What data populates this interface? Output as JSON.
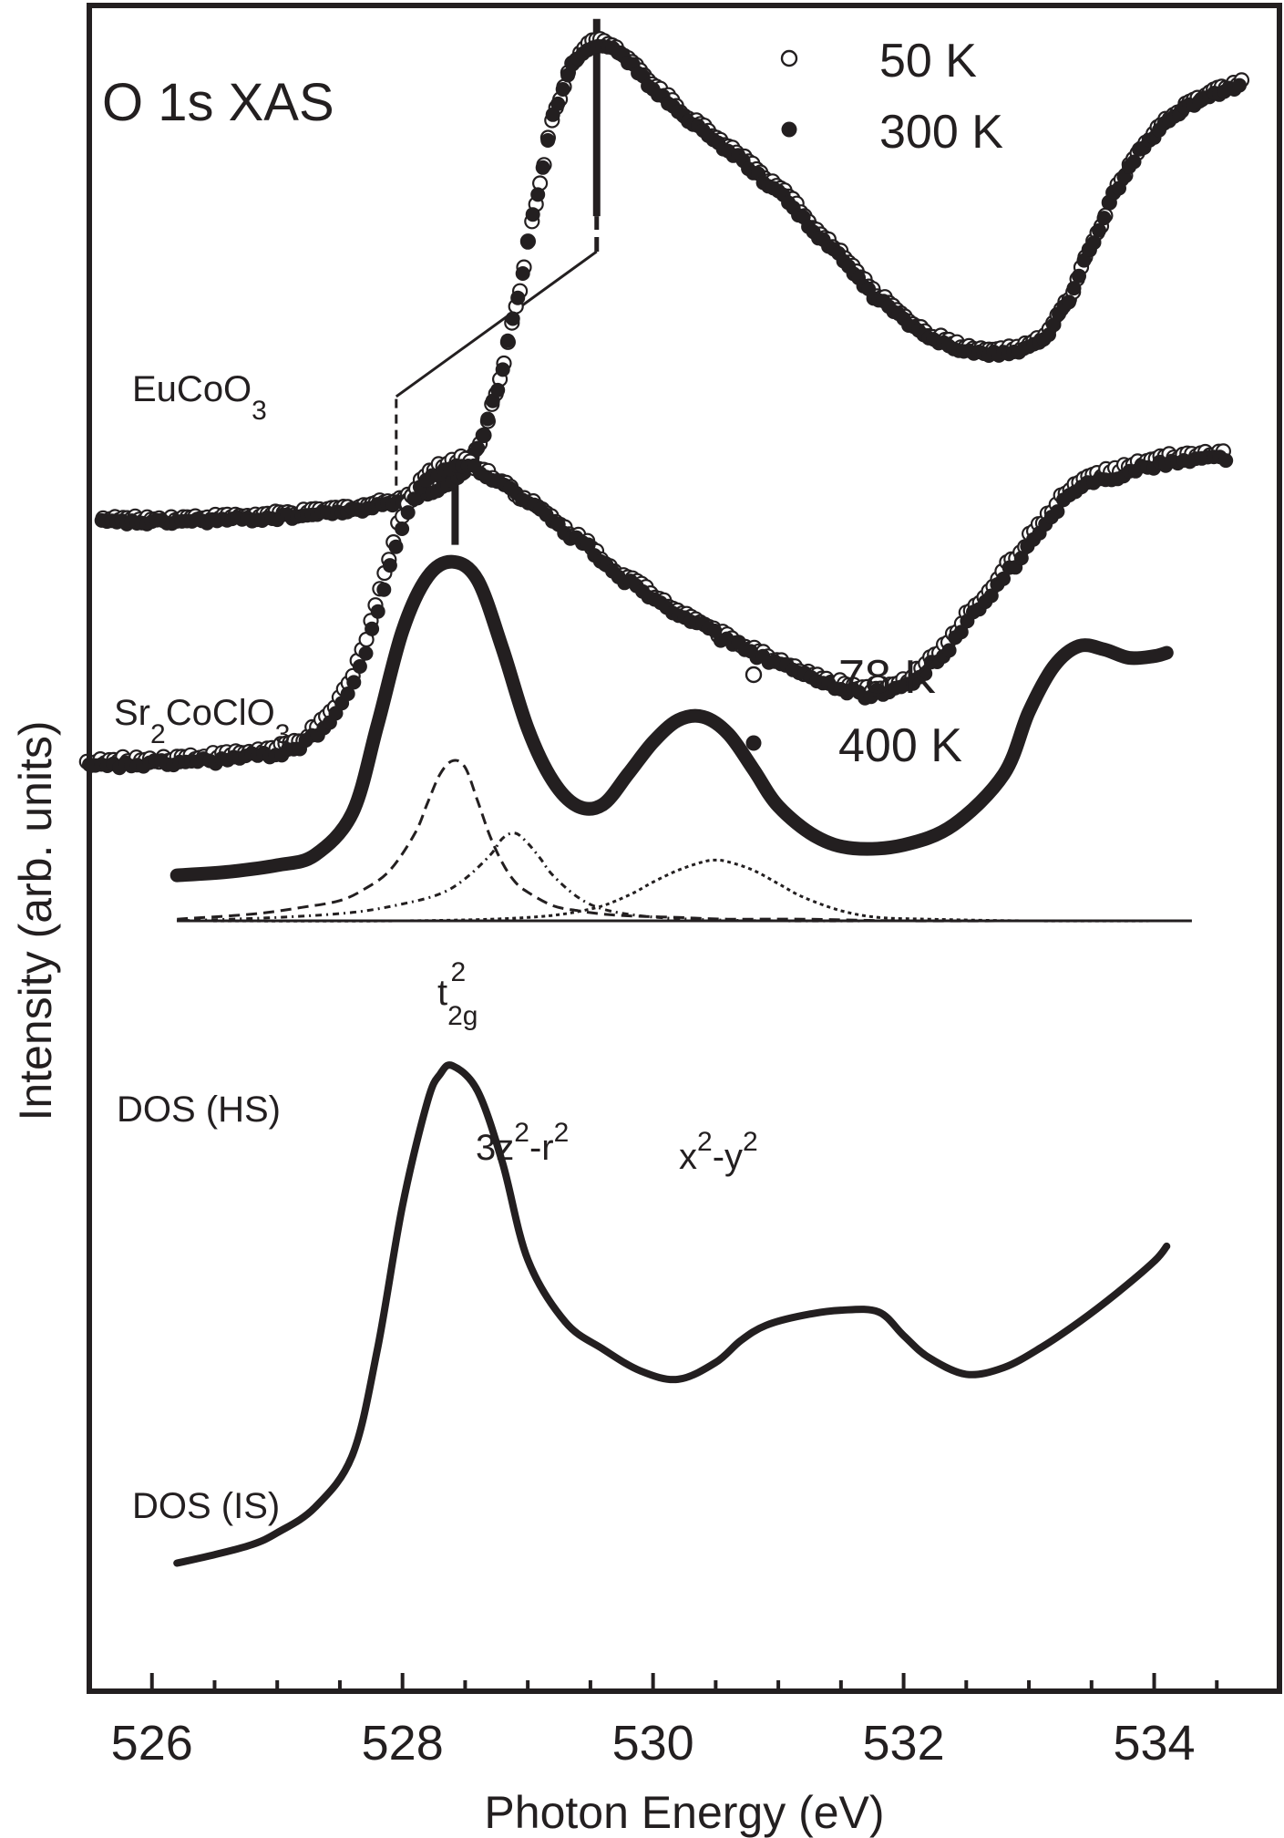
{
  "chart_data": {
    "type": "line",
    "title": "O 1s XAS",
    "xlabel": "Photon Energy (eV)",
    "ylabel": "Intensity (arb. units)",
    "xlim": [
      525.5,
      535.0
    ],
    "ylim": [
      0,
      1
    ],
    "x_ticks": [
      "526",
      "528",
      "530",
      "532",
      "534"
    ],
    "x_tick_values": [
      526,
      528,
      530,
      532,
      534
    ],
    "grid": false,
    "colors": {
      "ink": "#231f20",
      "open_marker": "#ffffff"
    },
    "labels": {
      "eucoo3_main": "EuCoO",
      "eucoo3_sub": "3",
      "sr2_main1": "Sr",
      "sr2_sub1": "2",
      "sr2_main2": "CoClO",
      "sr2_sub2": "3",
      "dos_hs": "DOS (HS)",
      "dos_is": "DOS (IS)",
      "t2g_main": "t",
      "t2g_sub": "2g",
      "t2g_sup": "2",
      "z2_a": "3z",
      "z2_sup1": "2",
      "z2_b": "-r",
      "z2_sup2": "2",
      "x2_a": "x",
      "x2_sup1": "2",
      "x2_b": "-y",
      "x2_sup2": "2"
    },
    "legends": [
      {
        "entries": [
          {
            "name": "50 K",
            "marker": "open-circle"
          },
          {
            "name": "300 K",
            "marker": "filled-circle"
          }
        ]
      },
      {
        "entries": [
          {
            "name": "78 K",
            "marker": "open-circle"
          },
          {
            "name": "400 K",
            "marker": "filled-circle"
          }
        ]
      }
    ],
    "curves": {
      "eucoo3": {
        "x": [
          525.6,
          526.0,
          526.4,
          526.8,
          527.2,
          527.6,
          527.9,
          528.1,
          528.3,
          528.45,
          528.6,
          528.75,
          528.9,
          529.05,
          529.2,
          529.35,
          529.5,
          529.6,
          529.8,
          530.0,
          530.3,
          530.6,
          531.0,
          531.4,
          531.8,
          532.2,
          532.6,
          532.9,
          533.1,
          533.3,
          533.5,
          533.7,
          533.9,
          534.1,
          534.3,
          534.5,
          534.7
        ],
        "y": [
          0.694,
          0.694,
          0.695,
          0.696,
          0.698,
          0.701,
          0.705,
          0.709,
          0.714,
          0.72,
          0.737,
          0.771,
          0.82,
          0.88,
          0.935,
          0.966,
          0.977,
          0.978,
          0.968,
          0.951,
          0.931,
          0.915,
          0.89,
          0.858,
          0.826,
          0.803,
          0.794,
          0.795,
          0.801,
          0.823,
          0.858,
          0.892,
          0.916,
          0.931,
          0.942,
          0.949,
          0.953
        ]
      },
      "sr2cocio3": {
        "x": [
          525.5,
          526.0,
          526.5,
          527.0,
          527.2,
          527.4,
          527.6,
          527.7,
          527.8,
          527.9,
          528.0,
          528.1,
          528.2,
          528.3,
          528.4,
          528.5,
          528.6,
          528.8,
          529.0,
          529.4,
          529.8,
          530.2,
          530.6,
          531.0,
          531.4,
          531.7,
          532.0,
          532.3,
          532.6,
          532.9,
          533.1,
          533.3,
          533.5,
          533.7,
          533.9,
          534.1,
          534.3,
          534.5,
          534.6
        ],
        "y": [
          0.549,
          0.551,
          0.553,
          0.557,
          0.562,
          0.574,
          0.596,
          0.616,
          0.642,
          0.667,
          0.693,
          0.71,
          0.72,
          0.724,
          0.728,
          0.73,
          0.725,
          0.717,
          0.705,
          0.684,
          0.659,
          0.641,
          0.624,
          0.61,
          0.598,
          0.592,
          0.596,
          0.614,
          0.643,
          0.67,
          0.69,
          0.708,
          0.719,
          0.722,
          0.726,
          0.73,
          0.731,
          0.733,
          0.733
        ]
      },
      "dos_hs": {
        "x": [
          526.2,
          526.6,
          527.0,
          527.3,
          527.6,
          527.8,
          528.0,
          528.2,
          528.4,
          528.6,
          528.8,
          529.0,
          529.2,
          529.4,
          529.6,
          529.8,
          530.0,
          530.2,
          530.4,
          530.6,
          530.8,
          531.0,
          531.3,
          531.6,
          532.0,
          532.4,
          532.8,
          533.0,
          533.2,
          533.4,
          533.6,
          533.8,
          534.0,
          534.1
        ],
        "y": [
          0.484,
          0.486,
          0.49,
          0.496,
          0.521,
          0.573,
          0.629,
          0.661,
          0.67,
          0.659,
          0.618,
          0.571,
          0.54,
          0.525,
          0.526,
          0.544,
          0.563,
          0.576,
          0.578,
          0.568,
          0.547,
          0.525,
          0.507,
          0.5,
          0.502,
          0.514,
          0.544,
          0.581,
          0.608,
          0.62,
          0.618,
          0.613,
          0.614,
          0.616
        ]
      },
      "dos_is": {
        "x": [
          526.2,
          526.5,
          526.8,
          527.0,
          527.3,
          527.6,
          527.8,
          528.0,
          528.2,
          528.3,
          528.4,
          528.6,
          528.8,
          529.0,
          529.3,
          529.6,
          529.9,
          530.2,
          530.5,
          530.7,
          530.9,
          531.2,
          531.5,
          531.8,
          532.0,
          532.2,
          532.5,
          532.8,
          533.1,
          533.4,
          533.7,
          534.0,
          534.1
        ],
        "y": [
          0.076,
          0.081,
          0.087,
          0.094,
          0.109,
          0.14,
          0.203,
          0.288,
          0.35,
          0.366,
          0.371,
          0.356,
          0.313,
          0.256,
          0.219,
          0.203,
          0.19,
          0.185,
          0.195,
          0.208,
          0.217,
          0.223,
          0.226,
          0.225,
          0.211,
          0.198,
          0.188,
          0.192,
          0.204,
          0.219,
          0.236,
          0.255,
          0.264
        ]
      },
      "component_t2g": {
        "x": [
          526.2,
          526.8,
          527.2,
          527.5,
          527.7,
          527.9,
          528.1,
          528.2,
          528.3,
          528.4,
          528.5,
          528.6,
          528.7,
          528.8,
          528.9,
          529.0,
          529.2,
          529.4,
          529.6,
          529.8,
          530.2,
          530.6,
          531.2,
          532.0,
          533.0,
          534.0,
          534.3
        ],
        "y": [
          0.458,
          0.461,
          0.465,
          0.469,
          0.476,
          0.487,
          0.509,
          0.527,
          0.544,
          0.552,
          0.548,
          0.528,
          0.507,
          0.491,
          0.48,
          0.474,
          0.466,
          0.463,
          0.461,
          0.46,
          0.459,
          0.458,
          0.458,
          0.457,
          0.457,
          0.457,
          0.457
        ]
      },
      "component_3z2": {
        "x": [
          526.2,
          527.0,
          527.6,
          528.0,
          528.3,
          528.5,
          528.7,
          528.8,
          528.9,
          529.0,
          529.1,
          529.2,
          529.4,
          529.6,
          529.9,
          530.3,
          531.0,
          532.0,
          533.0,
          534.3
        ],
        "y": [
          0.457,
          0.459,
          0.462,
          0.467,
          0.473,
          0.482,
          0.496,
          0.506,
          0.509,
          0.503,
          0.494,
          0.484,
          0.471,
          0.464,
          0.46,
          0.458,
          0.457,
          0.457,
          0.457,
          0.457
        ]
      },
      "component_x2y2": {
        "x": [
          526.2,
          528.0,
          529.0,
          529.5,
          529.8,
          530.0,
          530.2,
          530.4,
          530.5,
          530.6,
          530.8,
          531.0,
          531.2,
          531.5,
          531.8,
          532.2,
          533.0,
          534.3
        ],
        "y": [
          0.457,
          0.457,
          0.459,
          0.464,
          0.472,
          0.48,
          0.487,
          0.492,
          0.493,
          0.492,
          0.487,
          0.479,
          0.471,
          0.463,
          0.459,
          0.458,
          0.457,
          0.457
        ]
      },
      "baseline": {
        "x": [
          526.2,
          534.3
        ],
        "y": [
          0.457,
          0.457
        ]
      }
    },
    "guides": [
      {
        "x": [
          527.95,
          527.95,
          529.55,
          529.55
        ],
        "y": [
          0.706,
          0.768,
          0.854,
          0.875
        ]
      }
    ],
    "markers": [
      {
        "x": 529.55,
        "y": [
          0.875,
          0.992
        ]
      },
      {
        "x": 528.42,
        "y": [
          0.68,
          0.732
        ]
      }
    ]
  }
}
